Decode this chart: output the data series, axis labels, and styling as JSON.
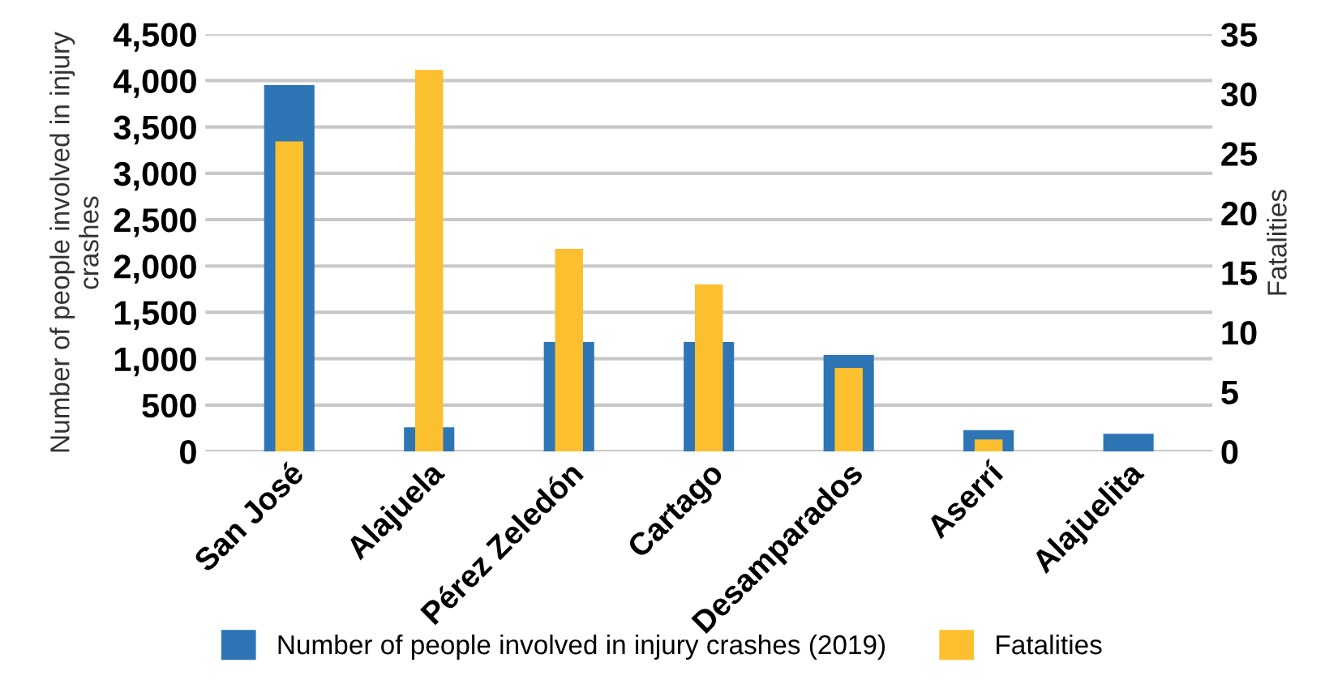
{
  "chart_data": {
    "type": "bar",
    "categories": [
      "San José",
      "Alajuela",
      "Pérez Zeledón",
      "Cartago",
      "Desamparados",
      "Aserrí",
      "Alajuelita"
    ],
    "series": [
      {
        "name": "Number of people involved in injury crashes (2019)",
        "color": "#2e75b6",
        "values": [
          3950,
          260,
          1180,
          1180,
          1040,
          230,
          190
        ]
      },
      {
        "name": "Fatalities",
        "color": "#fcbf2f",
        "axis": "y2",
        "values": [
          26,
          32,
          17,
          14,
          7,
          1,
          0
        ]
      }
    ],
    "ylabel": "Number of people involved in injury crashes",
    "y2label": "Fatalities",
    "ylim": [
      0,
      4500
    ],
    "yticks": [
      {
        "value": 0,
        "label": "0"
      },
      {
        "value": 500,
        "label": "500"
      },
      {
        "value": 1000,
        "label": "1,000"
      },
      {
        "value": 1500,
        "label": "1,500"
      },
      {
        "value": 2000,
        "label": "2,000"
      },
      {
        "value": 2500,
        "label": "2,500"
      },
      {
        "value": 3000,
        "label": "3,000"
      },
      {
        "value": 3500,
        "label": "3,500"
      },
      {
        "value": 4000,
        "label": "4,000"
      },
      {
        "value": 4500,
        "label": "4,500"
      }
    ],
    "y2lim": [
      0,
      35
    ],
    "y2ticks": [
      0,
      5,
      10,
      15,
      20,
      25,
      30,
      35
    ],
    "grid": "y",
    "legend": "bottom"
  }
}
